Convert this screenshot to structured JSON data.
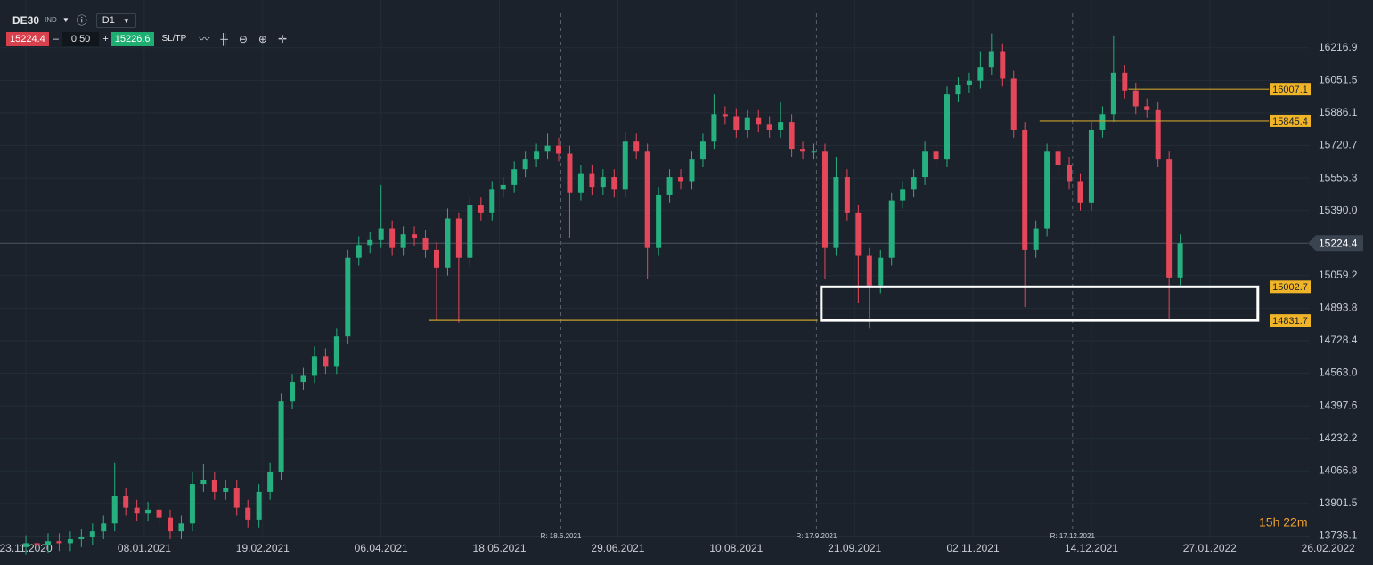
{
  "toolbar": {
    "symbol": "DE30",
    "category": "IND",
    "timeframe": "D1",
    "bid": "15224.4",
    "volume": "0.50",
    "ask": "15226.6",
    "sltp": "SL/TP"
  },
  "chart_data": {
    "type": "candlestick",
    "x": [
      0,
      3,
      6,
      9,
      12,
      15,
      18,
      21,
      24,
      27,
      30,
      33,
      36,
      39,
      42,
      45,
      48,
      51,
      54,
      57,
      60,
      63,
      66,
      69,
      72,
      75,
      78,
      81,
      84,
      87,
      90,
      93,
      96,
      99,
      102,
      105,
      108,
      111,
      114,
      117,
      120,
      123,
      126,
      129,
      132,
      135,
      138,
      141,
      144,
      147,
      150,
      153,
      156,
      159,
      162,
      165,
      168,
      171,
      174,
      177,
      180,
      183,
      186,
      189,
      192,
      195,
      198,
      201,
      204,
      207,
      210,
      213,
      216,
      219,
      222,
      225,
      228,
      231,
      234,
      237,
      240,
      243,
      246,
      249,
      252,
      255,
      258,
      261,
      264,
      267,
      270,
      273,
      276,
      279,
      282,
      285,
      288,
      291,
      294,
      297,
      300,
      303,
      306,
      309,
      312
    ],
    "open": [
      13680,
      13700,
      13690,
      13710,
      13700,
      13720,
      13730,
      13760,
      13800,
      13940,
      13880,
      13850,
      13870,
      13830,
      13760,
      13800,
      14000,
      14020,
      13960,
      13980,
      13880,
      13820,
      13960,
      14060,
      14420,
      14520,
      14550,
      14650,
      14600,
      14750,
      15150,
      15215,
      15240,
      15300,
      15200,
      15270,
      15250,
      15190,
      15100,
      15350,
      15150,
      15420,
      15380,
      15500,
      15520,
      15600,
      15650,
      15690,
      15720,
      15680,
      15480,
      15580,
      15510,
      15560,
      15500,
      15740,
      15690,
      15200,
      15470,
      15560,
      15540,
      15650,
      15740,
      15880,
      15870,
      15800,
      15860,
      15830,
      15800,
      15840,
      15700,
      15690,
      15690,
      15200,
      15560,
      15380,
      15160,
      15010,
      15150,
      15440,
      15500,
      15560,
      15690,
      15650,
      15980,
      16030,
      16050,
      16120,
      16200,
      16060,
      15800,
      15190,
      15300,
      15690,
      15620,
      15540,
      15430,
      15800,
      15880,
      16090,
      16000,
      15920,
      15900,
      15650,
      15050
    ],
    "high": [
      13740,
      13740,
      13750,
      13750,
      13760,
      13770,
      13800,
      13840,
      14110,
      13980,
      13920,
      13910,
      13910,
      13870,
      13840,
      14060,
      14100,
      14060,
      14020,
      14020,
      13920,
      14000,
      14110,
      14460,
      14560,
      14590,
      14700,
      14690,
      14790,
      15190,
      15260,
      15280,
      15520,
      15340,
      15310,
      15310,
      15290,
      15230,
      15400,
      15380,
      15460,
      15460,
      15540,
      15560,
      15640,
      15690,
      15730,
      15780,
      15760,
      15720,
      15620,
      15620,
      15600,
      15600,
      15790,
      15780,
      15730,
      15510,
      15600,
      15600,
      15690,
      15780,
      15980,
      15920,
      15910,
      15900,
      15900,
      15870,
      15940,
      15880,
      15740,
      15730,
      15730,
      15660,
      15600,
      15420,
      15200,
      15190,
      15480,
      15540,
      15600,
      15740,
      15730,
      16020,
      16070,
      16090,
      16200,
      16290,
      16240,
      16100,
      15840,
      15340,
      15730,
      15730,
      15660,
      15580,
      15840,
      15920,
      16280,
      16130,
      16040,
      15960,
      15940,
      15690,
      15270
    ],
    "low": [
      13640,
      13650,
      13650,
      13660,
      13660,
      13680,
      13690,
      13720,
      13760,
      13840,
      13810,
      13810,
      13790,
      13720,
      13720,
      13760,
      13960,
      13920,
      13920,
      13840,
      13780,
      13780,
      13920,
      14020,
      14380,
      14480,
      14510,
      14560,
      14560,
      14710,
      15110,
      15175,
      15200,
      15160,
      15160,
      15210,
      15150,
      14830,
      15060,
      14820,
      15110,
      15340,
      15340,
      15460,
      15480,
      15560,
      15610,
      15650,
      15640,
      15250,
      15440,
      15470,
      15470,
      15460,
      15460,
      15650,
      15040,
      15160,
      15430,
      15500,
      15500,
      15610,
      15700,
      15830,
      15760,
      15760,
      15790,
      15760,
      15760,
      15660,
      15650,
      15650,
      15040,
      15160,
      15340,
      14920,
      14790,
      14970,
      15110,
      15400,
      15460,
      15520,
      15610,
      15610,
      15940,
      15990,
      16010,
      16080,
      16020,
      15760,
      14900,
      15150,
      15260,
      15580,
      15500,
      15390,
      15390,
      15760,
      15840,
      15960,
      15880,
      15860,
      15610,
      14830,
      15010
    ],
    "close": [
      13700,
      13690,
      13710,
      13700,
      13720,
      13730,
      13760,
      13800,
      13940,
      13880,
      13850,
      13870,
      13830,
      13760,
      13800,
      14000,
      14020,
      13960,
      13980,
      13880,
      13820,
      13960,
      14060,
      14420,
      14520,
      14550,
      14650,
      14600,
      14750,
      15150,
      15215,
      15240,
      15300,
      15200,
      15270,
      15250,
      15190,
      15100,
      15350,
      15150,
      15420,
      15380,
      15500,
      15520,
      15600,
      15650,
      15690,
      15720,
      15680,
      15480,
      15580,
      15510,
      15560,
      15500,
      15740,
      15690,
      15200,
      15470,
      15560,
      15540,
      15650,
      15740,
      15880,
      15870,
      15800,
      15860,
      15830,
      15800,
      15840,
      15700,
      15690,
      15690,
      15200,
      15560,
      15380,
      15160,
      15010,
      15150,
      15440,
      15500,
      15560,
      15690,
      15650,
      15980,
      16030,
      16050,
      16120,
      16200,
      16060,
      15800,
      15190,
      15300,
      15690,
      15620,
      15540,
      15430,
      15800,
      15880,
      16090,
      16000,
      15920,
      15900,
      15650,
      15050,
      15224.4
    ],
    "up_color": "#26b07f",
    "down_color": "#e5475a",
    "xlim": [
      -7,
      354
    ],
    "ylim": [
      13720,
      16460
    ],
    "xticks": [
      {
        "value": 0,
        "label": "23.11.2020"
      },
      {
        "value": 32,
        "label": "08.01.2021"
      },
      {
        "value": 64,
        "label": "19.02.2021"
      },
      {
        "value": 96,
        "label": "06.04.2021"
      },
      {
        "value": 128,
        "label": "18.05.2021"
      },
      {
        "value": 160,
        "label": "29.06.2021"
      },
      {
        "value": 192,
        "label": "10.08.2021"
      },
      {
        "value": 224,
        "label": "21.09.2021"
      },
      {
        "value": 256,
        "label": "02.11.2021"
      },
      {
        "value": 288,
        "label": "14.12.2021"
      },
      {
        "value": 320,
        "label": "27.01.2022"
      },
      {
        "value": 352,
        "label": "26.02.2022"
      }
    ],
    "yticks": [
      16216.9,
      16051.5,
      15886.1,
      15720.7,
      15555.3,
      {
        "value": 15390,
        "label": "15390.0"
      },
      15059.2,
      14893.8,
      14728.4,
      {
        "value": 14563,
        "label": "14563.0"
      },
      14397.6,
      14232.2,
      14066.8,
      13901.5,
      13736.1
    ],
    "grid": true,
    "current_price": 15224.4,
    "levels": [
      {
        "value": 16007.1,
        "x": [
          298,
          336
        ]
      },
      {
        "value": 15845.4,
        "x": [
          274,
          336
        ]
      },
      {
        "value": 15002.7
      },
      {
        "value": 14831.7,
        "x": [
          109,
          214
        ]
      }
    ],
    "level_color": "#c9a02c",
    "zone": {
      "x": [
        215,
        333
      ],
      "y": [
        14831.7,
        15002.7
      ]
    },
    "rollovers": [
      {
        "x": 144.6,
        "label": "R: 18.6.2021"
      },
      {
        "x": 213.7,
        "label": "R: 17.9.2021"
      },
      {
        "x": 282.9,
        "label": "R: 17.12.2021"
      }
    ],
    "timer": "15h 22m"
  }
}
